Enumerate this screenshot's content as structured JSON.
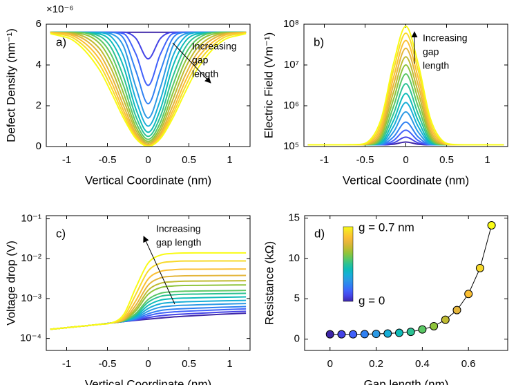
{
  "chart_data": [
    {
      "type": "line",
      "label": "a)",
      "xlabel": "Vertical Coordinate (nm)",
      "ylabel": "Defect Density (nm⁻¹)",
      "y_multiplier": "×10⁻⁶",
      "annotation": [
        "Increasing",
        "gap",
        "length"
      ],
      "x": [
        -1.2,
        -0.9,
        -0.6,
        -0.45,
        -0.3,
        -0.15,
        0,
        0.15,
        0.3,
        0.45,
        0.6,
        0.9,
        1.2
      ],
      "xlim": [
        -1.25,
        1.25
      ],
      "xticks": [
        -1,
        -0.5,
        0,
        0.5,
        1
      ],
      "ylim": [
        0,
        6
      ],
      "yticks": [
        0,
        2,
        4,
        6
      ],
      "series": [
        {
          "color": "#3e26a8",
          "values": [
            5.6,
            5.6,
            5.6,
            5.6,
            5.6,
            5.6,
            5.6,
            5.6,
            5.6,
            5.6,
            5.6,
            5.6,
            5.6
          ]
        },
        {
          "color": "#4443e6",
          "values": [
            5.6,
            5.6,
            5.6,
            5.6,
            5.6,
            5.3,
            4.3,
            5.3,
            5.6,
            5.6,
            5.6,
            5.6,
            5.6
          ]
        },
        {
          "color": "#4161fa",
          "values": [
            5.6,
            5.6,
            5.6,
            5.6,
            5.53,
            4.53,
            3.0,
            4.53,
            5.53,
            5.6,
            5.6,
            5.6,
            5.6
          ]
        },
        {
          "color": "#2f80f2",
          "values": [
            5.6,
            5.6,
            5.6,
            5.59,
            5.3,
            3.7,
            2.1,
            3.7,
            5.3,
            5.59,
            5.6,
            5.6,
            5.6
          ]
        },
        {
          "color": "#2b99e4",
          "values": [
            5.6,
            5.6,
            5.6,
            5.52,
            4.9,
            2.9,
            1.4,
            2.9,
            4.9,
            5.52,
            5.6,
            5.6,
            5.6
          ]
        },
        {
          "color": "#17aed7",
          "values": [
            5.6,
            5.6,
            5.58,
            5.37,
            4.4,
            2.3,
            1.0,
            2.3,
            4.4,
            5.37,
            5.58,
            5.6,
            5.6
          ]
        },
        {
          "color": "#0ebbb8",
          "values": [
            5.6,
            5.6,
            5.52,
            5.13,
            3.9,
            1.83,
            0.7,
            1.83,
            3.9,
            5.13,
            5.52,
            5.6,
            5.6
          ]
        },
        {
          "color": "#2cc294",
          "values": [
            5.6,
            5.6,
            5.42,
            4.82,
            3.39,
            1.47,
            0.5,
            1.47,
            3.39,
            4.82,
            5.42,
            5.6,
            5.6
          ]
        },
        {
          "color": "#5ac764",
          "values": [
            5.6,
            5.6,
            5.26,
            4.48,
            2.96,
            1.18,
            0.35,
            1.18,
            2.96,
            4.48,
            5.26,
            5.6,
            5.6
          ]
        },
        {
          "color": "#8fc43b",
          "values": [
            5.6,
            5.57,
            5.07,
            4.13,
            2.59,
            0.96,
            0.25,
            0.96,
            2.59,
            4.13,
            5.07,
            5.57,
            5.6
          ]
        },
        {
          "color": "#c0bb31",
          "values": [
            5.6,
            5.53,
            4.82,
            3.79,
            2.27,
            0.79,
            0.17,
            0.79,
            2.27,
            3.79,
            4.82,
            5.53,
            5.6
          ]
        },
        {
          "color": "#e4b53a",
          "values": [
            5.6,
            5.47,
            4.57,
            3.45,
            1.98,
            0.64,
            0.1,
            0.64,
            1.98,
            3.45,
            4.57,
            5.47,
            5.6
          ]
        },
        {
          "color": "#fbbf33",
          "values": [
            5.6,
            5.39,
            4.3,
            3.15,
            1.74,
            0.54,
            0.06,
            0.54,
            1.74,
            3.15,
            4.3,
            5.39,
            5.6
          ]
        },
        {
          "color": "#f7d92a",
          "values": [
            5.57,
            5.28,
            4.04,
            2.88,
            1.55,
            0.45,
            0.03,
            0.45,
            1.55,
            2.88,
            4.04,
            5.28,
            5.57
          ]
        },
        {
          "color": "#f9fb15",
          "values": [
            5.54,
            5.15,
            3.78,
            2.63,
            1.38,
            0.39,
            0.01,
            0.39,
            1.38,
            2.63,
            3.78,
            5.15,
            5.54
          ]
        }
      ]
    },
    {
      "type": "line",
      "label": "b)",
      "xlabel": "Vertical Coordinate (nm)",
      "ylabel": "Electric Field (Vm⁻¹)",
      "log_y": true,
      "annotation": [
        "Increasing",
        "gap",
        "length"
      ],
      "x": [
        -1.2,
        -0.9,
        -0.6,
        -0.45,
        -0.3,
        -0.15,
        0,
        0.15,
        0.3,
        0.45,
        0.6,
        0.9,
        1.2
      ],
      "xlim": [
        -1.25,
        1.25
      ],
      "xticks": [
        -1,
        -0.5,
        0,
        0.5,
        1
      ],
      "ylim": [
        100000.0,
        100000000.0
      ],
      "yticks": [
        {
          "value": 100000.0,
          "label": "10⁵"
        },
        {
          "value": 1000000.0,
          "label": "10⁶"
        },
        {
          "value": 10000000.0,
          "label": "10⁷"
        },
        {
          "value": 100000000.0,
          "label": "10⁸"
        }
      ],
      "series": [
        {
          "color": "#3e26a8",
          "values": [
            110000.0,
            110000.0,
            110000.0,
            110000.0,
            110000.0,
            114000.0,
            129000.0,
            114000.0,
            110000.0,
            110000.0,
            110000.0,
            110000.0,
            110000.0
          ]
        },
        {
          "color": "#4443e6",
          "values": [
            110000.0,
            110000.0,
            110000.0,
            110000.0,
            110000.0,
            123000.0,
            170000.0,
            123000.0,
            110000.0,
            110000.0,
            110000.0,
            110000.0,
            110000.0
          ]
        },
        {
          "color": "#4161fa",
          "values": [
            110000.0,
            110000.0,
            110000.0,
            110000.0,
            110000.0,
            141000.0,
            251000.0,
            141000.0,
            110000.0,
            110000.0,
            110000.0,
            110000.0,
            110000.0
          ]
        },
        {
          "color": "#2f80f2",
          "values": [
            110000.0,
            110000.0,
            110000.0,
            110000.0,
            112000.0,
            173000.0,
            398000.0,
            173000.0,
            112000.0,
            110000.0,
            110000.0,
            110000.0,
            110000.0
          ]
        },
        {
          "color": "#2b99e4",
          "values": [
            110000.0,
            110000.0,
            110000.0,
            110000.0,
            115000.0,
            229000.0,
            708000.0,
            229000.0,
            115000.0,
            110000.0,
            110000.0,
            110000.0,
            110000.0
          ]
        },
        {
          "color": "#17aed7",
          "values": [
            110000.0,
            110000.0,
            110000.0,
            110000.0,
            120000.0,
            313000.0,
            1200000.0,
            313000.0,
            120000.0,
            110000.0,
            110000.0,
            110000.0,
            110000.0
          ]
        },
        {
          "color": "#0ebbb8",
          "values": [
            110000.0,
            110000.0,
            110000.0,
            110000.0,
            127000.0,
            437000.0,
            2000000.0,
            437000.0,
            127000.0,
            110000.0,
            110000.0,
            110000.0,
            110000.0
          ]
        },
        {
          "color": "#2cc294",
          "values": [
            110000.0,
            110000.0,
            110000.0,
            110000.0,
            139000.0,
            640000.0,
            3470000.0,
            640000.0,
            139000.0,
            110000.0,
            110000.0,
            110000.0,
            110000.0
          ]
        },
        {
          "color": "#5ac764",
          "values": [
            110000.0,
            110000.0,
            110000.0,
            112000.0,
            155000.0,
            970000.0,
            6030000.0,
            970000.0,
            155000.0,
            112000.0,
            110000.0,
            110000.0,
            110000.0
          ]
        },
        {
          "color": "#8fc43b",
          "values": [
            110000.0,
            110000.0,
            110000.0,
            113000.0,
            178000.0,
            1460000.0,
            10000000.0,
            1460000.0,
            178000.0,
            113000.0,
            110000.0,
            110000.0,
            110000.0
          ]
        },
        {
          "color": "#c0bb31",
          "values": [
            110000.0,
            110000.0,
            110000.0,
            115000.0,
            209000.0,
            2190000.0,
            15800000.0,
            2190000.0,
            209000.0,
            115000.0,
            110000.0,
            110000.0,
            110000.0
          ]
        },
        {
          "color": "#e4b53a",
          "values": [
            110000.0,
            110000.0,
            110000.0,
            119000.0,
            251000.0,
            3310000.0,
            25700000.0,
            3310000.0,
            251000.0,
            119000.0,
            110000.0,
            110000.0,
            110000.0
          ]
        },
        {
          "color": "#fbbf33",
          "values": [
            110000.0,
            110000.0,
            110000.0,
            124000.0,
            310000.0,
            5010000.0,
            39800000.0,
            5010000.0,
            310000.0,
            124000.0,
            110000.0,
            110000.0,
            110000.0
          ]
        },
        {
          "color": "#f7d92a",
          "values": [
            110000.0,
            110000.0,
            110000.0,
            130000.0,
            390000.0,
            7600000.0,
            60300000.0,
            7600000.0,
            390000.0,
            130000.0,
            110000.0,
            110000.0,
            110000.0
          ]
        },
        {
          "color": "#f9fb15",
          "values": [
            110000.0,
            110000.0,
            112000.0,
            139000.0,
            495000.0,
            11000000.0,
            89100000.0,
            11000000.0,
            495000.0,
            139000.0,
            112000.0,
            110000.0,
            110000.0
          ]
        }
      ]
    },
    {
      "type": "line",
      "label": "c)",
      "xlabel": "Vertical Coordinate (nm)",
      "ylabel": "Voltage drop (V)",
      "log_y": true,
      "annotation": [
        "Increasing",
        "gap length"
      ],
      "x": [
        -1.2,
        -0.9,
        -0.6,
        -0.45,
        -0.3,
        -0.15,
        0,
        0.15,
        0.3,
        0.45,
        0.6,
        0.9,
        1.2
      ],
      "xlim": [
        -1.25,
        1.25
      ],
      "xticks": [
        -1,
        -0.5,
        0,
        0.5,
        1
      ],
      "ylim": [
        5e-05,
        0.12
      ],
      "yticks": [
        {
          "value": 0.0001,
          "label": "10⁻⁴"
        },
        {
          "value": 0.001,
          "label": "10⁻³"
        },
        {
          "value": 0.01,
          "label": "10⁻²"
        },
        {
          "value": 0.1,
          "label": "10⁻¹"
        }
      ],
      "series": [
        {
          "color": "#3e26a8",
          "values": [
            0.00017,
            0.000195,
            0.000225,
            0.000245,
            0.000265,
            0.000285,
            0.000305,
            0.000325,
            0.000345,
            0.00036,
            0.000375,
            0.000405,
            0.00043
          ]
        },
        {
          "color": "#4443e6",
          "values": [
            0.00017,
            0.000195,
            0.000225,
            0.000245,
            0.000265,
            0.000291,
            0.000333,
            0.000369,
            0.000394,
            0.00041,
            0.000425,
            0.000455,
            0.00048
          ]
        },
        {
          "color": "#4161fa",
          "values": [
            0.00017,
            0.000195,
            0.000225,
            0.000245,
            0.000266,
            0.000299,
            0.000371,
            0.000431,
            0.000461,
            0.00048,
            0.000495,
            0.000525,
            0.00055
          ]
        },
        {
          "color": "#2f80f2",
          "values": [
            0.00017,
            0.000195,
            0.000225,
            0.000245,
            0.000267,
            0.000309,
            0.000415,
            0.000501,
            0.000539,
            0.00056,
            0.000575,
            0.000605,
            0.00063
          ]
        },
        {
          "color": "#2b99e4",
          "values": [
            0.00017,
            0.000195,
            0.000225,
            0.000245,
            0.000268,
            0.000323,
            0.000481,
            0.000607,
            0.000655,
            0.00068,
            0.000695,
            0.000725,
            0.00075
          ]
        },
        {
          "color": "#17aed7",
          "values": [
            0.00017,
            0.000195,
            0.000225,
            0.000245,
            0.00027,
            0.000341,
            0.000564,
            0.000739,
            0.000801,
            0.00083,
            0.000845,
            0.000875,
            0.0009
          ]
        },
        {
          "color": "#0ebbb8",
          "values": [
            0.00017,
            0.000195,
            0.000225,
            0.000245,
            0.000272,
            0.000365,
            0.000674,
            0.000915,
            0.000995,
            0.00103,
            0.001045,
            0.001075,
            0.0011
          ]
        },
        {
          "color": "#2cc294",
          "values": [
            0.00017,
            0.000195,
            0.000225,
            0.000245,
            0.000274,
            0.000395,
            0.000811,
            0.001135,
            0.001237,
            0.00128,
            0.001295,
            0.001325,
            0.00135
          ]
        },
        {
          "color": "#5ac764",
          "values": [
            0.00017,
            0.000195,
            0.000225,
            0.000245,
            0.000277,
            0.000425,
            0.000949,
            0.001355,
            0.00148,
            0.00153,
            0.001545,
            0.001575,
            0.0016
          ]
        },
        {
          "color": "#8fc43b",
          "values": [
            0.00017,
            0.000195,
            0.000225,
            0.000245,
            0.000283,
            0.000497,
            0.00128,
            0.00188,
            0.00206,
            0.00213,
            0.002145,
            0.002175,
            0.0022
          ]
        },
        {
          "color": "#c0bb31",
          "values": [
            0.00017,
            0.000195,
            0.000225,
            0.000245,
            0.000289,
            0.000569,
            0.00161,
            0.00241,
            0.00264,
            0.00273,
            0.002745,
            0.002775,
            0.0028
          ]
        },
        {
          "color": "#e4b53a",
          "values": [
            0.00017,
            0.000195,
            0.000225,
            0.000245,
            0.000299,
            0.000689,
            0.00216,
            0.0033,
            0.00361,
            0.00373,
            0.003745,
            0.003775,
            0.0038
          ]
        },
        {
          "color": "#fbbf33",
          "values": [
            0.00017,
            0.000195,
            0.000225,
            0.000245,
            0.000316,
            0.000893,
            0.00309,
            0.00479,
            0.00526,
            0.00543,
            0.005445,
            0.005475,
            0.0055
          ]
        },
        {
          "color": "#f7d92a",
          "values": [
            0.00017,
            0.000195,
            0.000225,
            0.000245,
            0.000349,
            0.00129,
            0.00491,
            0.00769,
            0.00846,
            0.00873,
            0.008745,
            0.008775,
            0.0088
          ]
        },
        {
          "color": "#f9fb15",
          "values": [
            0.00017,
            0.000195,
            0.000225,
            0.000245,
            0.000401,
            0.00191,
            0.00777,
            0.01227,
            0.01351,
            0.01393,
            0.013945,
            0.013975,
            0.014
          ]
        }
      ]
    },
    {
      "type": "line_markers",
      "label": "d)",
      "xlabel": "Gap length (nm)",
      "ylabel": "Resistance (kΩ)",
      "colorbar_labels": [
        "g = 0.7 nm",
        "g = 0"
      ],
      "x": [
        0,
        0.05,
        0.1,
        0.15,
        0.2,
        0.25,
        0.3,
        0.35,
        0.4,
        0.45,
        0.5,
        0.55,
        0.6,
        0.65,
        0.7
      ],
      "values": [
        0.6,
        0.6,
        0.6,
        0.62,
        0.65,
        0.7,
        0.78,
        0.9,
        1.2,
        1.6,
        2.4,
        3.6,
        5.6,
        8.8,
        14.1
      ],
      "colors": [
        "#3e26a8",
        "#4443e6",
        "#4161fa",
        "#2f80f2",
        "#2b99e4",
        "#17aed7",
        "#0ebbb8",
        "#2cc294",
        "#5ac764",
        "#8fc43b",
        "#c0bb31",
        "#e4b53a",
        "#fbbf33",
        "#f7d92a",
        "#f9fb15"
      ],
      "line_color": "#000000",
      "xlim": [
        -0.11,
        0.77
      ],
      "xticks": [
        0,
        0.2,
        0.4,
        0.6
      ],
      "ylim": [
        -1.4,
        15.3
      ],
      "yticks": [
        0,
        5,
        10,
        15
      ]
    }
  ]
}
